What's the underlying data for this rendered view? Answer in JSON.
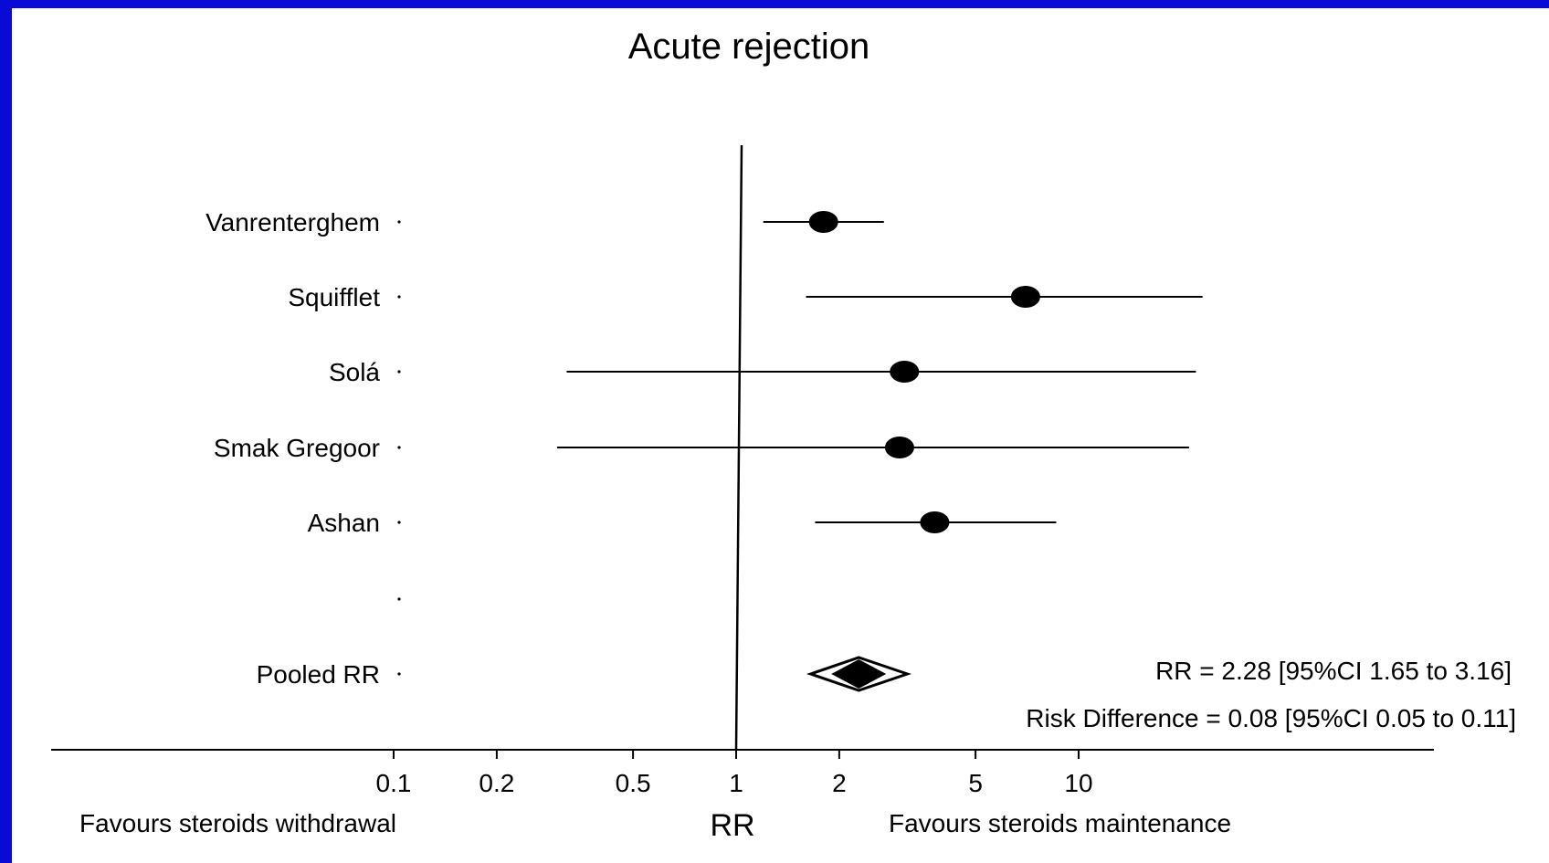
{
  "chart_data": {
    "type": "forest",
    "title": "Acute rejection",
    "xlabel": "RR",
    "x_scale": "log",
    "xlim": [
      0.1,
      20
    ],
    "reference_line": 1,
    "ticks": [
      {
        "value": 0.1,
        "label": "0.1"
      },
      {
        "value": 0.2,
        "label": "0.2"
      },
      {
        "value": 0.5,
        "label": "0.5"
      },
      {
        "value": 1,
        "label": "1"
      },
      {
        "value": 2,
        "label": "2"
      },
      {
        "value": 5,
        "label": "5"
      },
      {
        "value": 10,
        "label": "10"
      }
    ],
    "left_label": "Favours steroids withdrawal",
    "right_label": "Favours steroids maintenance",
    "studies": [
      {
        "name": "Vanrenterghem",
        "rr": 1.8,
        "ci_low": 1.2,
        "ci_high": 2.7
      },
      {
        "name": "Squifflet",
        "rr": 7.0,
        "ci_low": 1.6,
        "ci_high": 23
      },
      {
        "name": "Solá",
        "rr": 3.1,
        "ci_low": 0.32,
        "ci_high": 22
      },
      {
        "name": "Smak Gregoor",
        "rr": 3.0,
        "ci_low": 0.3,
        "ci_high": 21
      },
      {
        "name": "Ashan",
        "rr": 3.8,
        "ci_low": 1.7,
        "ci_high": 8.6
      }
    ],
    "pooled": {
      "name": "Pooled RR",
      "rr": 2.28,
      "ci_low": 1.65,
      "ci_high": 3.16,
      "rr_text": "RR = 2.28 [95%CI 1.65 to 3.16]",
      "rd_text": "Risk Difference = 0.08 [95%CI 0.05 to 0.11]"
    }
  }
}
